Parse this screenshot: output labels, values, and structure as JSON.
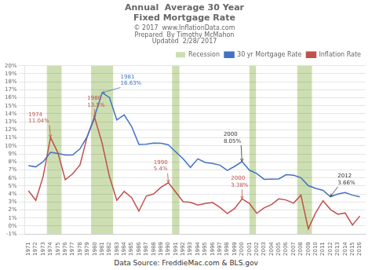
{
  "chart_data": {
    "type": "line",
    "title": "Annual  Average 30 Year\nFixed Mortgage Rate",
    "subtitle": [
      "© 2017  www.InflationData.com",
      "Prepared  By Timothy McMahon",
      "Updated  2/28/ 2017"
    ],
    "source": "Data Source: FreddieMac.com & BLS.gov",
    "x": [
      1971,
      1972,
      1973,
      1974,
      1975,
      1976,
      1977,
      1978,
      1979,
      1980,
      1981,
      1982,
      1983,
      1984,
      1985,
      1986,
      1987,
      1988,
      1989,
      1990,
      1991,
      1992,
      1993,
      1994,
      1995,
      1996,
      1997,
      1998,
      1999,
      2000,
      2001,
      2002,
      2003,
      2004,
      2005,
      2006,
      2007,
      2008,
      2009,
      2010,
      2011,
      2012,
      2013,
      2014,
      2015,
      2016
    ],
    "series": [
      {
        "name": "30 yr Mortgage Rate",
        "color": "#4472C4",
        "values": [
          7.54,
          7.38,
          8.04,
          9.19,
          9.05,
          8.87,
          8.85,
          9.64,
          11.2,
          13.74,
          16.63,
          16.04,
          13.24,
          13.87,
          12.43,
          10.19,
          10.21,
          10.34,
          10.32,
          10.13,
          9.25,
          8.39,
          7.31,
          8.38,
          7.93,
          7.81,
          7.6,
          6.94,
          7.44,
          8.05,
          6.97,
          6.54,
          5.83,
          5.84,
          5.87,
          6.41,
          6.34,
          6.03,
          5.04,
          4.69,
          4.45,
          3.66,
          3.98,
          4.17,
          3.85,
          3.65
        ]
      },
      {
        "name": "Inflation Rate",
        "color": "#C0504D",
        "values": [
          4.4,
          3.2,
          6.2,
          11.04,
          9.14,
          5.77,
          6.5,
          7.62,
          11.22,
          13.5,
          10.35,
          6.16,
          3.21,
          4.32,
          3.56,
          1.86,
          3.74,
          4.01,
          4.83,
          5.4,
          4.23,
          3.03,
          2.96,
          2.61,
          2.81,
          2.93,
          2.34,
          1.55,
          2.19,
          3.38,
          2.83,
          1.59,
          2.27,
          2.68,
          3.39,
          3.24,
          2.85,
          3.85,
          -0.36,
          1.64,
          3.16,
          2.07,
          1.47,
          1.62,
          0.12,
          1.26
        ]
      }
    ],
    "bands": {
      "name": "Recession",
      "color": "#CDDFB2",
      "ranges": [
        [
          1973.5,
          1975.5
        ],
        [
          1979.5,
          1982.5
        ],
        [
          1990.5,
          1991.5
        ],
        [
          2001.0,
          2001.9
        ],
        [
          2007.5,
          2009.5
        ]
      ]
    },
    "annotations": [
      {
        "text": "1981\n16.63%",
        "x": 1981,
        "y": 16.63,
        "text_at": [
          1983.5,
          18.2
        ],
        "color": "#4472C4"
      },
      {
        "text": "2000\n8.05%",
        "x": 2000,
        "y": 8.05,
        "text_at": [
          1997.5,
          11.0
        ],
        "color": "#333333"
      },
      {
        "text": "2012\n3.66%",
        "x": 2012,
        "y": 3.66,
        "text_at": [
          2013.0,
          5.8
        ],
        "color": "#333333"
      },
      {
        "text": "1974\n11.04%",
        "x": 1974,
        "y": 11.04,
        "text_at": [
          1971.0,
          13.5
        ],
        "color": "#C0504D"
      },
      {
        "text": "1980\n13.5%",
        "x": 1980,
        "y": 13.5,
        "text_at": [
          1979.0,
          15.5
        ],
        "color": "#C0504D"
      },
      {
        "text": "1990\n5.4%",
        "x": 1990,
        "y": 5.4,
        "text_at": [
          1988.0,
          7.5
        ],
        "color": "#C0504D"
      },
      {
        "text": "2000\n3.38%",
        "x": 2000,
        "y": 3.38,
        "text_at": [
          1998.5,
          5.5
        ],
        "color": "#C0504D"
      }
    ],
    "xlim": [
      1970.5,
      2016.8
    ],
    "xticks": [
      1971,
      1972,
      1973,
      1974,
      1975,
      1976,
      1977,
      1978,
      1979,
      1980,
      1981,
      1982,
      1983,
      1984,
      1985,
      1986,
      1987,
      1988,
      1989,
      1990,
      1991,
      1992,
      1993,
      1994,
      1995,
      1996,
      1997,
      1998,
      1999,
      2000,
      2001,
      2002,
      2003,
      2004,
      2005,
      2006,
      2007,
      2008,
      2009,
      2010,
      2011,
      2012,
      2013,
      2014,
      2015,
      2016
    ],
    "ylim": [
      -1,
      20
    ],
    "yticks": [
      {
        "value": -1,
        "label": "-1%"
      },
      {
        "value": 0,
        "label": "0%"
      },
      {
        "value": 1,
        "label": "1%"
      },
      {
        "value": 2,
        "label": "2%"
      },
      {
        "value": 3,
        "label": "3%"
      },
      {
        "value": 4,
        "label": "4%"
      },
      {
        "value": 5,
        "label": "5%"
      },
      {
        "value": 6,
        "label": "6%"
      },
      {
        "value": 7,
        "label": "7%"
      },
      {
        "value": 8,
        "label": "8%"
      },
      {
        "value": 9,
        "label": "9%"
      },
      {
        "value": 10,
        "label": "10%"
      },
      {
        "value": 11,
        "label": "11%"
      },
      {
        "value": 12,
        "label": "12%"
      },
      {
        "value": 13,
        "label": "13%"
      },
      {
        "value": 14,
        "label": "14%"
      },
      {
        "value": 15,
        "label": "15%"
      },
      {
        "value": 16,
        "label": "16%"
      },
      {
        "value": 17,
        "label": "17%"
      },
      {
        "value": 18,
        "label": "18%"
      },
      {
        "value": 19,
        "label": "19%"
      },
      {
        "value": 20,
        "label": "20%"
      }
    ],
    "grid": "y",
    "legend": "upper right"
  }
}
